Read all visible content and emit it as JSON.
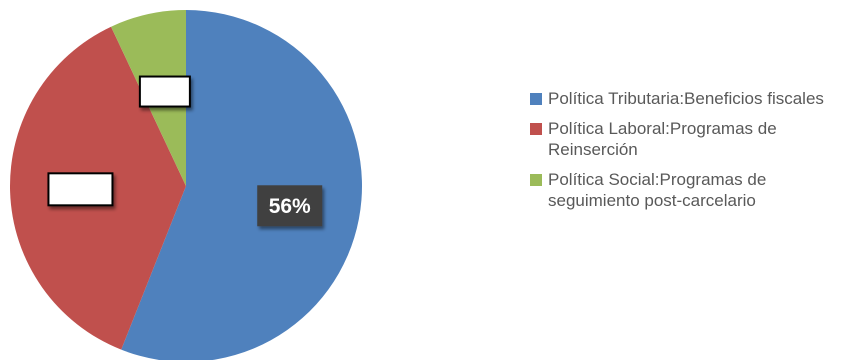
{
  "chart_data": {
    "type": "pie",
    "categories": [
      "Política Tributaria:Beneficios fiscales",
      "Política Laboral:Programas de Reinserción",
      "Política Social:Programas de seguimiento post-carcelario"
    ],
    "values": [
      56,
      37,
      7
    ],
    "colors": [
      "#4f81bd",
      "#c0504d",
      "#9bbb59"
    ],
    "data_labels": [
      "56%",
      "",
      ""
    ],
    "legend_position": "right",
    "start_angle_deg": 0,
    "direction": "clockwise"
  }
}
